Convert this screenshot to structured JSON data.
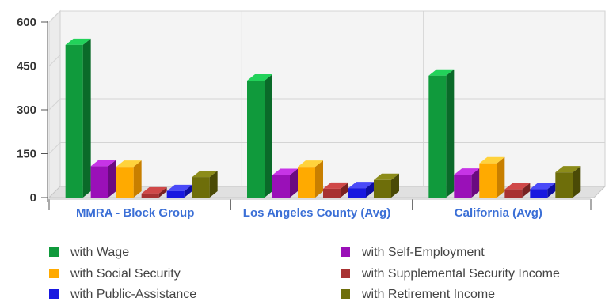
{
  "chart_data": {
    "type": "bar",
    "categories": [
      "MMRA - Block Group",
      "Los Angeles County (Avg)",
      "California (Avg)"
    ],
    "series": [
      {
        "name": "with Wage",
        "values": [
          522,
          400,
          417
        ],
        "color": "#109a3c",
        "side": "#0a6a29",
        "top": "#22d25a"
      },
      {
        "name": "with Self-Employment",
        "values": [
          107,
          77,
          78
        ],
        "color": "#9a10b8",
        "side": "#6a0a80",
        "top": "#c634e6"
      },
      {
        "name": "with Social Security",
        "values": [
          105,
          105,
          117
        ],
        "color": "#ffaa00",
        "side": "#c87f00",
        "top": "#ffd23c"
      },
      {
        "name": "with Supplemental Security Income",
        "values": [
          14,
          30,
          28
        ],
        "color": "#a83232",
        "side": "#782222",
        "top": "#d04848"
      },
      {
        "name": "with Public-Assistance",
        "values": [
          22,
          32,
          29
        ],
        "color": "#1818e0",
        "side": "#0e0ea0",
        "top": "#4a4af8"
      },
      {
        "name": "with Retirement Income",
        "values": [
          70,
          60,
          86
        ],
        "color": "#6e6e0a",
        "side": "#4a4a06",
        "top": "#8c8c1a"
      }
    ],
    "yticks": [
      "600",
      "450",
      "300",
      "150",
      "0"
    ],
    "ylim": [
      0,
      600
    ],
    "grid": true,
    "legend_position": "bottom"
  }
}
